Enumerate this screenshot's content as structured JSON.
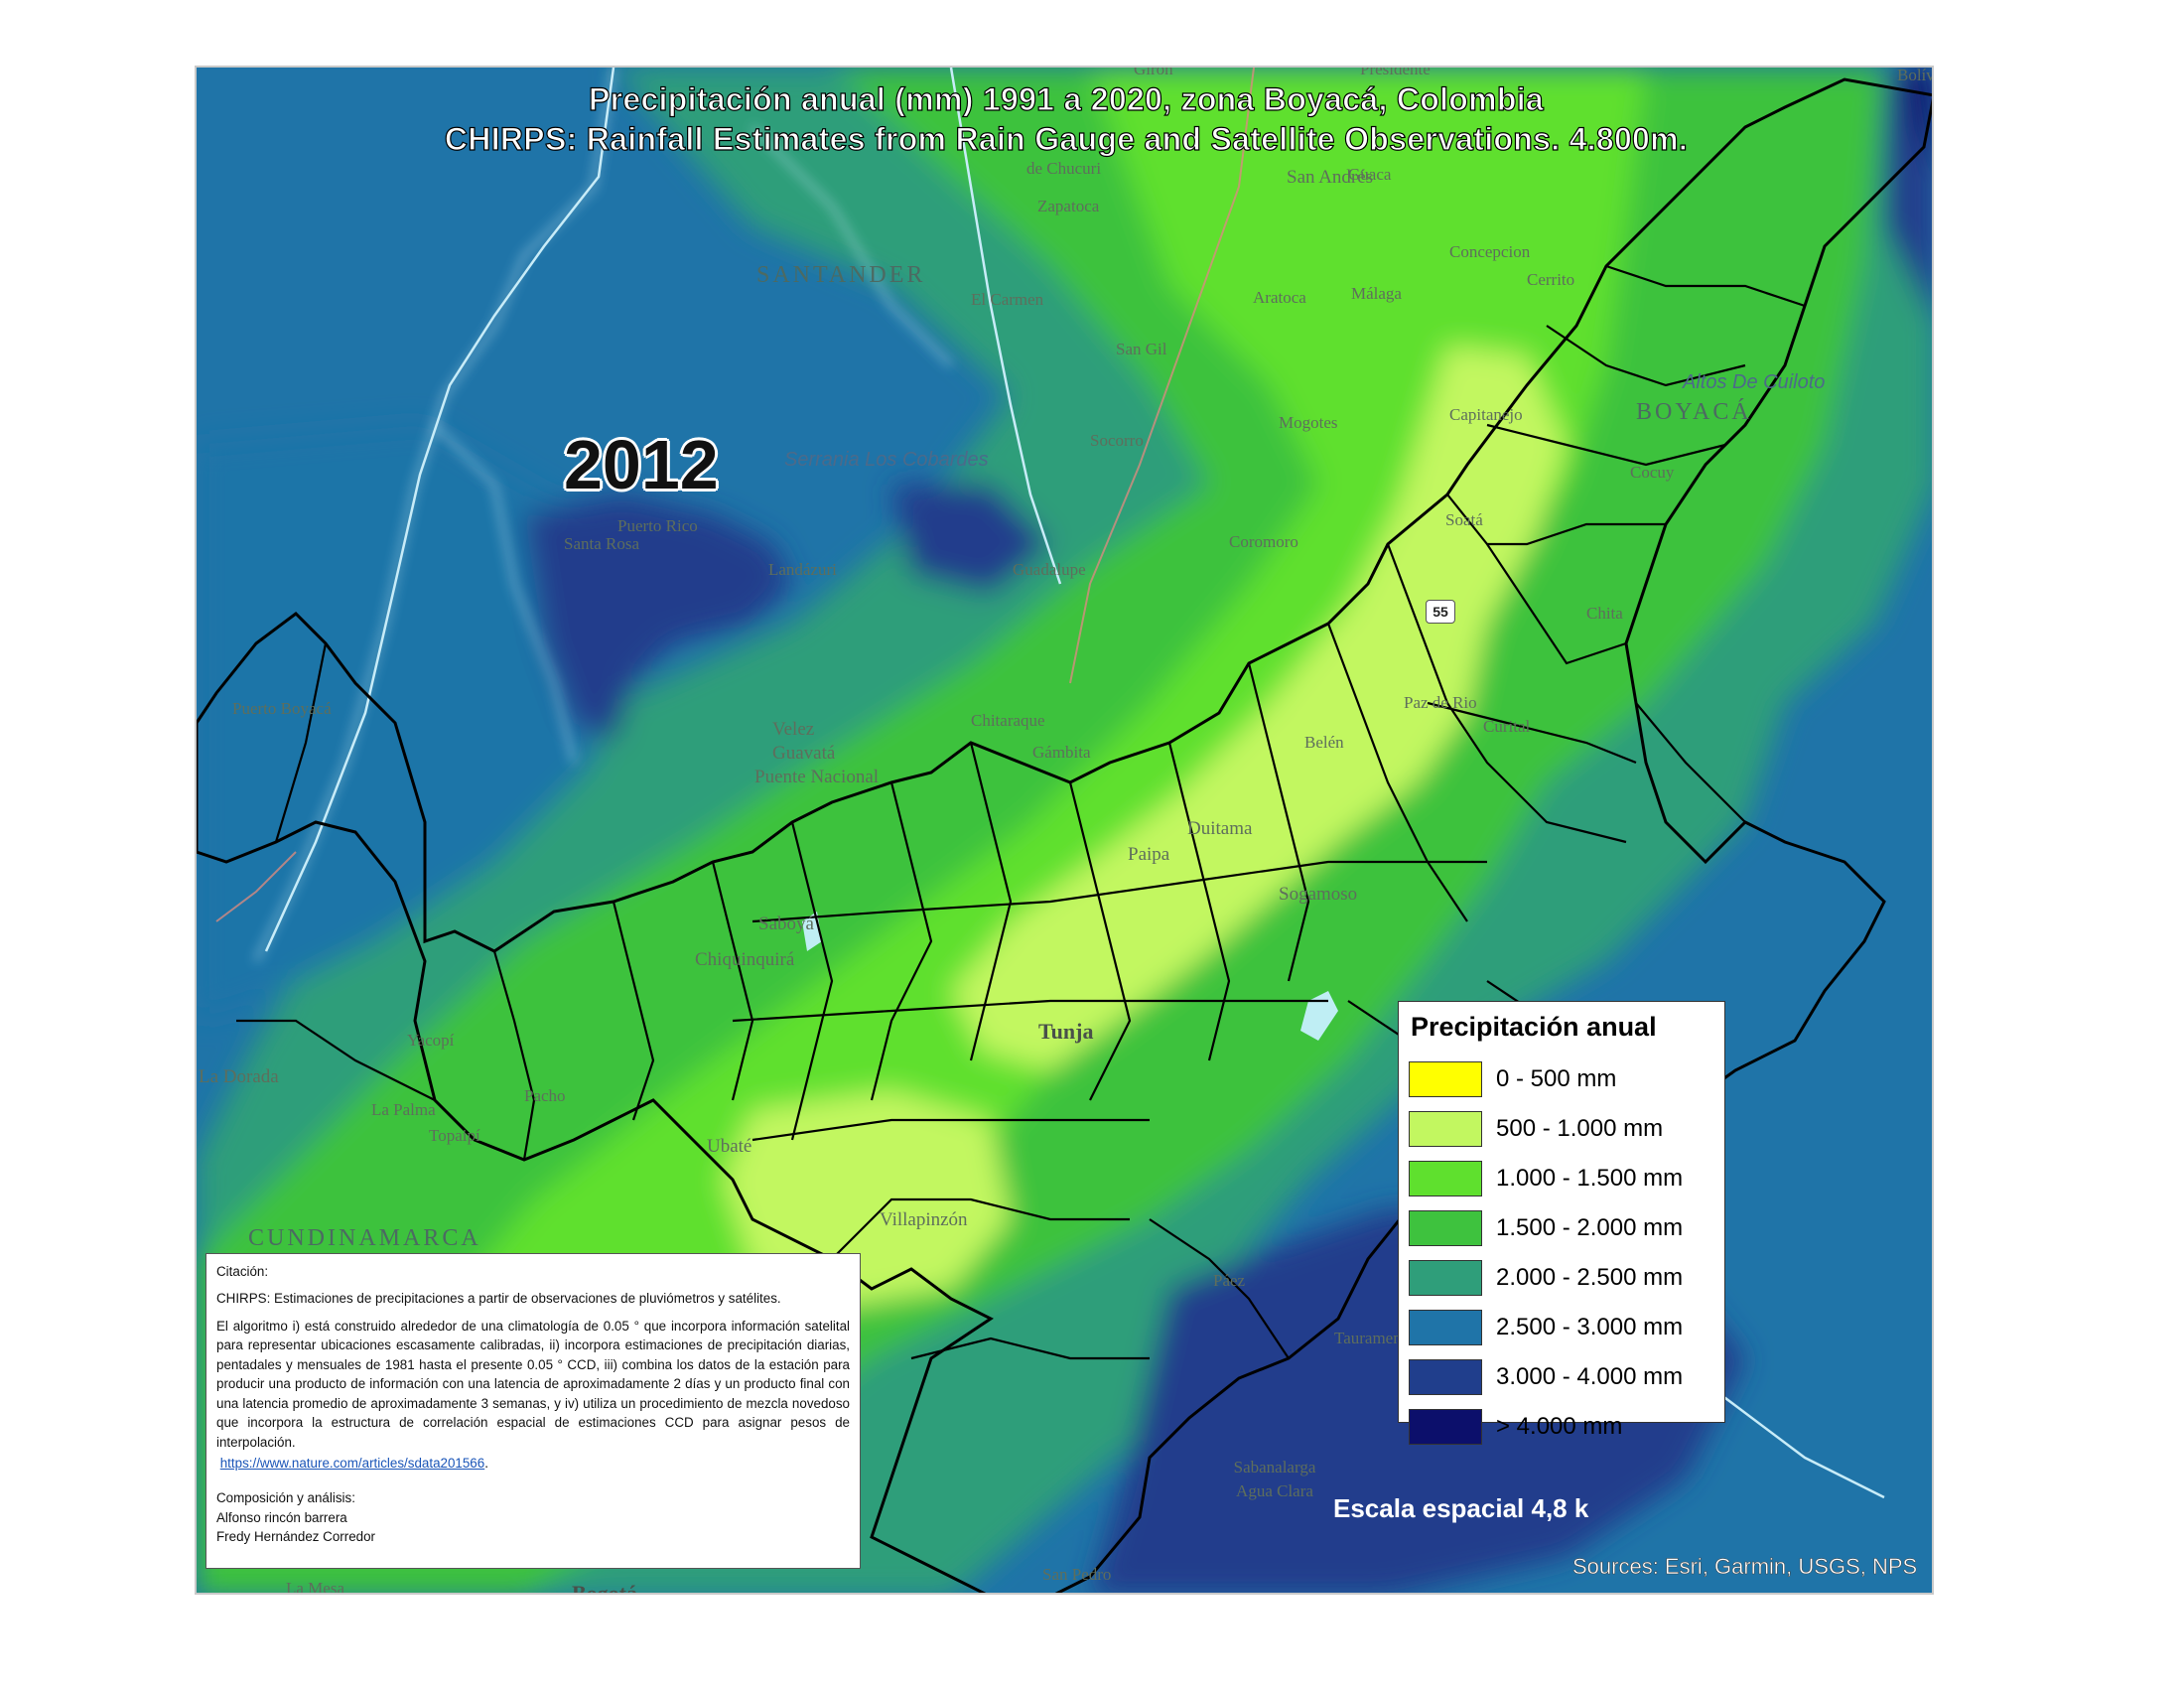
{
  "title_line1": "Precipitación anual (mm) 1991 a 2020, zona Boyacá, Colombia",
  "title_line2": "CHIRPS: Rainfall Estimates from Rain Gauge and Satellite Observations.  4.800m.",
  "year": "2012",
  "road_shield": "55",
  "scale_text": "Escala espacial 4,8 k",
  "attribution": "Sources: Esri, Garmin, USGS, NPS",
  "legend": {
    "title": "Precipitación anual",
    "items": [
      {
        "label": "0 - 500 mm",
        "color": "#ffff00"
      },
      {
        "label": "500 - 1.000 mm",
        "color": "#c2f760"
      },
      {
        "label": "1.000 - 1.500 mm",
        "color": "#5fe02e"
      },
      {
        "label": "1.500 - 2.000 mm",
        "color": "#3ec23e"
      },
      {
        "label": "2.000 - 2.500 mm",
        "color": "#2f9e7a"
      },
      {
        "label": "2.500 - 3.000 mm",
        "color": "#1f74a8"
      },
      {
        "label": "3.000 - 4.000 mm",
        "color": "#203e8c"
      },
      {
        "label": "> 4.000 mm",
        "color": "#0c0f6b"
      }
    ]
  },
  "citation": {
    "heading": "Citación:",
    "p1": "CHIRPS: Estimaciones de precipitaciones a partir de observaciones de pluviómetros y satélites.",
    "p2": "El algoritmo i) está construido alrededor de una climatología de 0.05 ° que incorpora información satelital para representar ubicaciones escasamente calibradas, ii) incorpora estimaciones de precipitación diarias, pentadales y mensuales de 1981 hasta el presente 0.05 ° CCD, iii) combina los datos de la estación para producir una producto de información con una latencia de aproximadamente 2 días y un producto final con una latencia promedio de aproximadamente 3 semanas, y iv) utiliza un procedimiento de mezcla novedoso que incorpora la estructura de correlación espacial de estimaciones CCD para asignar pesos de interpolación.",
    "link": "https://www.nature.com/articles/sdata201566",
    "link_suffix": ".",
    "composition_heading": "Composición y análisis:",
    "author1": "Alfonso rincón barrera",
    "author2": "Fredy Hernández Corredor"
  },
  "places": {
    "san_andres": "San Andrés",
    "guaca": "Guaca",
    "zapatoca": "Zapatoca",
    "de_chucuri": "de Chucuri",
    "santander": "SANTANDER",
    "el_carmen": "El Carmen",
    "san_gil": "San Gil",
    "aratoca": "Aratoca",
    "malaga": "Málaga",
    "concepcion": "Concepcion",
    "cerrito": "Cerrito",
    "capitanejo": "Capitanejo",
    "boyaca": "BOYACÁ",
    "altos": "Altos De Cuiloto",
    "serrania": "Serrania Los Cobardes",
    "socorro": "Socorro",
    "mogotes": "Mogotes",
    "coromoro": "Coromoro",
    "cocuy": "Cocuy",
    "soata": "Soatá",
    "puerto_rico": "Puerto Rico",
    "santa_rosa": "Santa Rosa",
    "landazuri": "Landázuri",
    "guadalupe": "Guadalupe",
    "velez": "Velez",
    "guavata": "Guavatá",
    "puente_nacional": "Puente Nacional",
    "chitaraque": "Chitaraque",
    "gambita": "Gámbita",
    "belen": "Belén",
    "paz_de_rio": "Paz de Rio",
    "curital": "Curital",
    "duitama": "Duitama",
    "paipa": "Paipa",
    "sogamoso": "Sogamoso",
    "saboya": "Saboyá",
    "chiquinquira": "Chiquinquirá",
    "tunja": "Tunja",
    "ubate": "Ubaté",
    "la_dorada": "La Dorada",
    "la_palma": "La Palma",
    "topaipi": "Topaipí",
    "pacho": "Pacho",
    "cundinamarca": "CUNDINAMARCA",
    "villapinzon": "Villapinzón",
    "paez": "Páez",
    "tauramena": "Tauramena",
    "sabanalarga": "Sabanalarga",
    "agua_clara": "Agua Clara",
    "san_pedro": "San Pedro",
    "la_mesa": "La Mesa",
    "bogota": "Bogotá",
    "chita": "Chita",
    "yacopi": "Yacopí",
    "puerto_boyaca": "Puerto Boyacá",
    "presidente": "Presidente",
    "giron": "Girón",
    "bolivar": "Bolív"
  }
}
